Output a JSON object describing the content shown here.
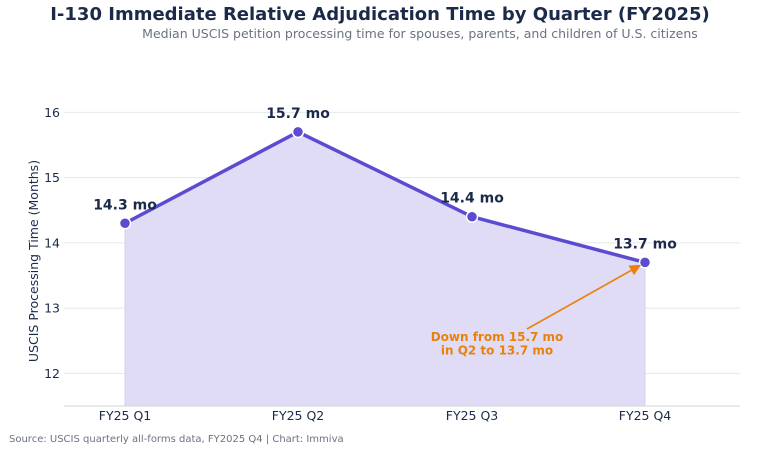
{
  "title": "I-130 Immediate Relative Adjudication Time by Quarter (FY2025)",
  "subtitle": "Median USCIS petition processing time for spouses, parents, and children of U.S. citizens",
  "source": "Source: USCIS quarterly all-forms data, FY2025 Q4  |  Chart: Immiva",
  "colors": {
    "line": "#5b4bd1",
    "fill": "#e0dcf5",
    "annotation": "#e8820c",
    "title": "#1c2a4a",
    "subtitle": "#6b7280"
  },
  "chart_data": {
    "type": "area",
    "categories": [
      "FY25 Q1",
      "FY25 Q2",
      "FY25 Q3",
      "FY25 Q4"
    ],
    "values": [
      14.3,
      15.7,
      14.4,
      13.7
    ],
    "data_labels": [
      "14.3 mo",
      "15.7 mo",
      "14.4 mo",
      "13.7 mo"
    ],
    "xlabel": "",
    "ylabel": "USCIS Processing Time (Months)",
    "ylim": [
      11.5,
      16.25
    ],
    "yticks": [
      12,
      13,
      14,
      15,
      16
    ],
    "grid": true,
    "annotation": {
      "lines": [
        "Down from 15.7 mo",
        "in Q2 to 13.7 mo"
      ],
      "points_to": "FY25 Q4"
    }
  }
}
